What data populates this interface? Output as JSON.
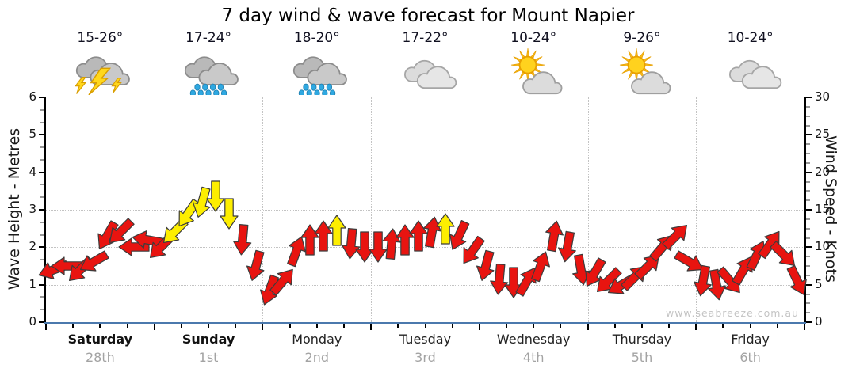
{
  "title": "7 day wind & wave forecast for Mount Napier",
  "watermark": "www.seabreeze.com.au",
  "forecast": {
    "days": [
      {
        "name": "Saturday",
        "date": "28th",
        "temp": "15-26°",
        "icon": "storm",
        "bold": true
      },
      {
        "name": "Sunday",
        "date": "1st",
        "temp": "17-24°",
        "icon": "rain",
        "bold": true
      },
      {
        "name": "Monday",
        "date": "2nd",
        "temp": "18-20°",
        "icon": "rain",
        "bold": false
      },
      {
        "name": "Tuesday",
        "date": "3rd",
        "temp": "17-22°",
        "icon": "cloudy",
        "bold": false
      },
      {
        "name": "Wednesday",
        "date": "4th",
        "temp": "10-24°",
        "icon": "partly-sunny",
        "bold": false
      },
      {
        "name": "Thursday",
        "date": "5th",
        "temp": "9-26°",
        "icon": "partly-sunny",
        "bold": false
      },
      {
        "name": "Friday",
        "date": "6th",
        "temp": "10-24°",
        "icon": "cloudy",
        "bold": false
      }
    ]
  },
  "chart_data": {
    "type": "wind-arrows",
    "title": "7 day wind & wave forecast for Mount Napier",
    "left_axis": {
      "title": "Wave Height - Metres",
      "min": 0,
      "max": 6,
      "ticks": [
        0,
        1,
        2,
        3,
        4,
        5,
        6
      ]
    },
    "right_axis": {
      "title": "Wind Speed - Knots",
      "min": 0,
      "max": 30,
      "ticks": [
        0,
        5,
        10,
        15,
        20,
        25,
        30
      ]
    },
    "x_axis": {
      "day_labels": [
        "Saturday 28th",
        "Sunday 1st",
        "Monday 2nd",
        "Tuesday 3rd",
        "Wednesday 4th",
        "Thursday 5th",
        "Friday 6th"
      ],
      "points_per_day": 8,
      "interval": "3h",
      "grid": "dotted vertical line at each day boundary"
    },
    "grid_h_lines_metres": [
      1,
      2,
      3,
      4,
      5
    ],
    "colors": {
      "red": "#e81410",
      "yellow": "#fdee00",
      "outline": "#3c3c3c",
      "x_axis_line": "#4b79ad"
    },
    "dir_convention": "degrees clockwise; 0 = arrow points up-chart, 90 = right, 180 = down, 270 = left",
    "points": [
      {
        "knots": 7,
        "dir": 250,
        "color": "red"
      },
      {
        "knots": 7.5,
        "dir": 270,
        "color": "red"
      },
      {
        "knots": 7,
        "dir": 225,
        "color": "red"
      },
      {
        "knots": 8,
        "dir": 240,
        "color": "red"
      },
      {
        "knots": 11.5,
        "dir": 210,
        "color": "red"
      },
      {
        "knots": 12,
        "dir": 225,
        "color": "red"
      },
      {
        "knots": 10,
        "dir": 270,
        "color": "red"
      },
      {
        "knots": 11,
        "dir": 280,
        "color": "red"
      },
      {
        "knots": 10,
        "dir": 225,
        "color": "red"
      },
      {
        "knots": 12,
        "dir": 225,
        "color": "yellow"
      },
      {
        "knots": 14.5,
        "dir": 215,
        "color": "yellow"
      },
      {
        "knots": 16,
        "dir": 195,
        "color": "yellow"
      },
      {
        "knots": 16.8,
        "dir": 180,
        "color": "yellow"
      },
      {
        "knots": 14.5,
        "dir": 180,
        "color": "yellow"
      },
      {
        "knots": 11,
        "dir": 185,
        "color": "red"
      },
      {
        "knots": 7.5,
        "dir": 195,
        "color": "red"
      },
      {
        "knots": 4.2,
        "dir": 200,
        "color": "red"
      },
      {
        "knots": 5.5,
        "dir": 40,
        "color": "red"
      },
      {
        "knots": 9.5,
        "dir": 20,
        "color": "red"
      },
      {
        "knots": 11,
        "dir": 0,
        "color": "red"
      },
      {
        "knots": 11.5,
        "dir": 0,
        "color": "red"
      },
      {
        "knots": 12.3,
        "dir": 0,
        "color": "yellow"
      },
      {
        "knots": 10.5,
        "dir": 185,
        "color": "red"
      },
      {
        "knots": 10,
        "dir": 180,
        "color": "red"
      },
      {
        "knots": 10,
        "dir": 180,
        "color": "red"
      },
      {
        "knots": 10.5,
        "dir": 5,
        "color": "red"
      },
      {
        "knots": 11,
        "dir": 0,
        "color": "red"
      },
      {
        "knots": 11.5,
        "dir": 0,
        "color": "red"
      },
      {
        "knots": 12,
        "dir": 10,
        "color": "red"
      },
      {
        "knots": 12.5,
        "dir": 0,
        "color": "yellow"
      },
      {
        "knots": 11.5,
        "dir": 205,
        "color": "red"
      },
      {
        "knots": 9.5,
        "dir": 215,
        "color": "red"
      },
      {
        "knots": 7.5,
        "dir": 195,
        "color": "red"
      },
      {
        "knots": 5.7,
        "dir": 185,
        "color": "red"
      },
      {
        "knots": 5.3,
        "dir": 180,
        "color": "red"
      },
      {
        "knots": 5.5,
        "dir": 30,
        "color": "red"
      },
      {
        "knots": 7.5,
        "dir": 20,
        "color": "red"
      },
      {
        "knots": 11.5,
        "dir": 10,
        "color": "red"
      },
      {
        "knots": 10,
        "dir": 190,
        "color": "red"
      },
      {
        "knots": 7,
        "dir": 170,
        "color": "red"
      },
      {
        "knots": 6.5,
        "dir": 210,
        "color": "red"
      },
      {
        "knots": 5.5,
        "dir": 225,
        "color": "red"
      },
      {
        "knots": 5,
        "dir": 240,
        "color": "red"
      },
      {
        "knots": 6,
        "dir": 45,
        "color": "red"
      },
      {
        "knots": 7.5,
        "dir": 45,
        "color": "red"
      },
      {
        "knots": 10,
        "dir": 40,
        "color": "red"
      },
      {
        "knots": 11.5,
        "dir": 45,
        "color": "red"
      },
      {
        "knots": 8,
        "dir": 120,
        "color": "red"
      },
      {
        "knots": 5.5,
        "dir": 190,
        "color": "red"
      },
      {
        "knots": 5,
        "dir": 170,
        "color": "red"
      },
      {
        "knots": 5.5,
        "dir": 140,
        "color": "red"
      },
      {
        "knots": 7,
        "dir": 30,
        "color": "red"
      },
      {
        "knots": 9,
        "dir": 25,
        "color": "red"
      },
      {
        "knots": 10.5,
        "dir": 35,
        "color": "red"
      },
      {
        "knots": 9,
        "dir": 135,
        "color": "red"
      },
      {
        "knots": 5.5,
        "dir": 155,
        "color": "red"
      }
    ]
  }
}
